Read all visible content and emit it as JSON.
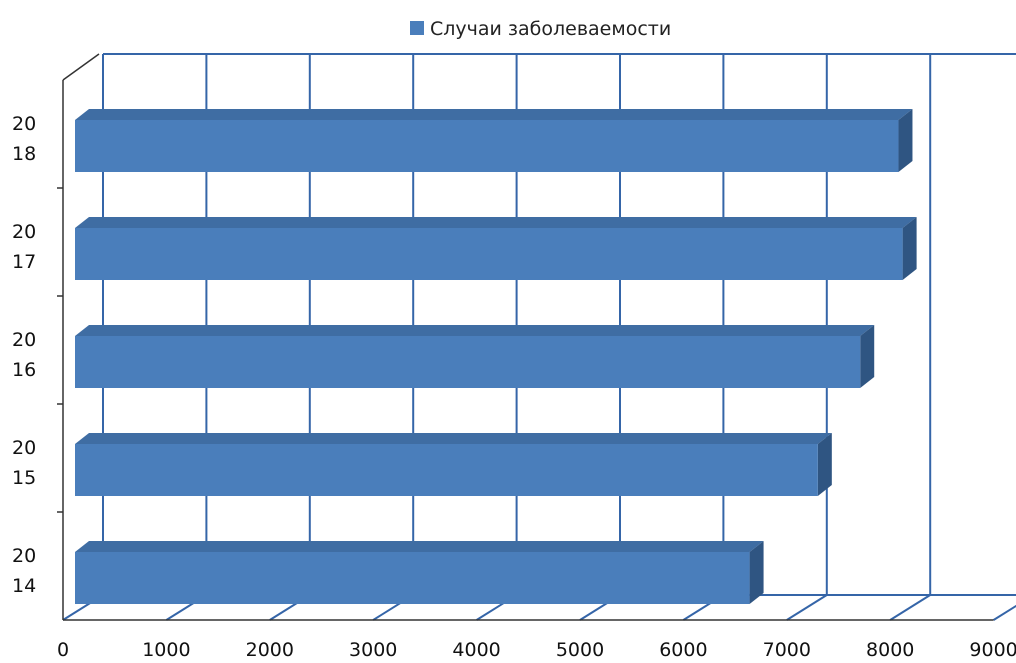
{
  "chart_data": {
    "type": "bar",
    "orientation": "horizontal",
    "three_d": true,
    "categories": [
      [
        "20",
        "18"
      ],
      [
        "20",
        "17"
      ],
      [
        "20",
        "16"
      ],
      [
        "20",
        "15"
      ],
      [
        "20",
        "14"
      ]
    ],
    "series": [
      {
        "name": "Случаи заболеваемости",
        "values": [
          8080,
          8120,
          7710,
          7300,
          6640
        ]
      }
    ],
    "x_ticks": [
      "0",
      "1000",
      "2000",
      "3000",
      "4000",
      "5000",
      "6000",
      "7000",
      "8000",
      "9000"
    ],
    "xlim": [
      0,
      9000
    ],
    "grid": true,
    "legend": "top",
    "colors": {
      "bar_front": "#4a7ebb",
      "bar_top": "#3f6da3",
      "bar_side": "#2f5582",
      "grid": "#3565a8",
      "axis": "#333333",
      "legend_swatch": "#4a7ebb"
    }
  }
}
